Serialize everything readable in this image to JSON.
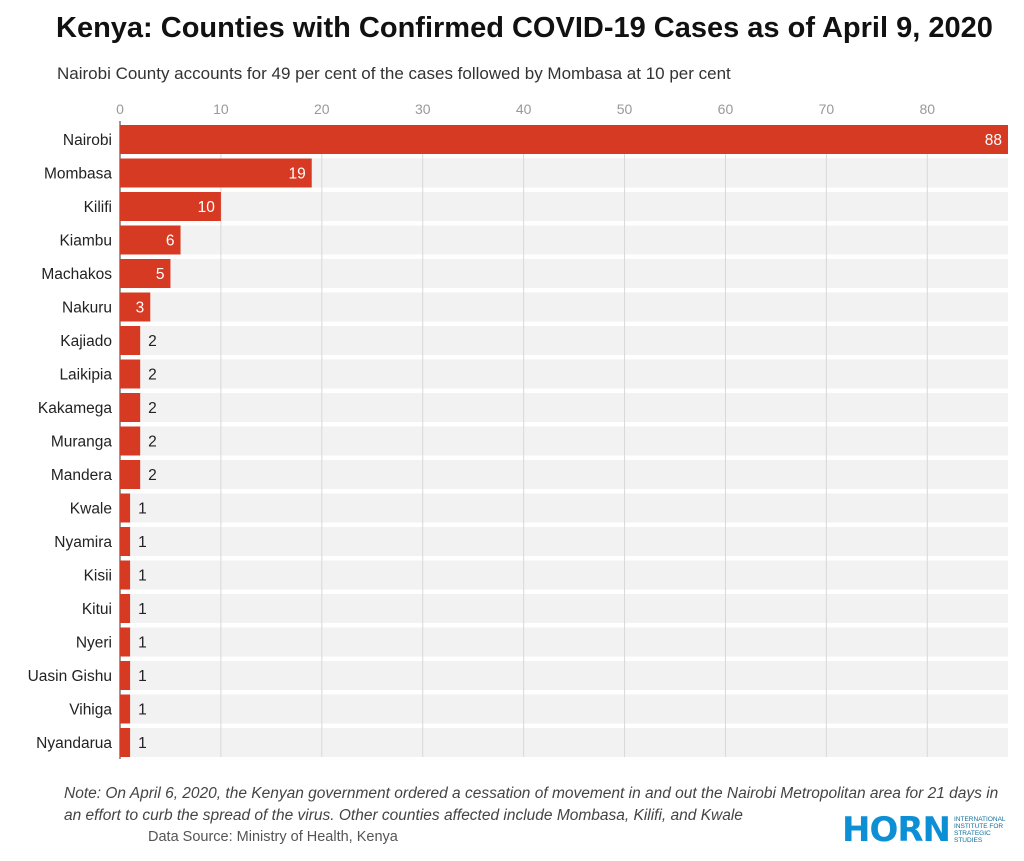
{
  "header": {
    "title": "Kenya: Counties with Confirmed COVID-19 Cases as of April 9, 2020",
    "subtitle": "Nairobi County accounts for 49 per cent of the cases followed by Mombasa at 10 per cent"
  },
  "footer": {
    "note": "Note: On April 6, 2020, the Kenyan government ordered a cessation of movement in and out the Nairobi Metropolitan area for 21 days in an effort to curb the spread of the virus. Other counties affected include Mombasa, Kilifi, and Kwale",
    "source": "Data Source: Ministry of Health, Kenya",
    "logo_word": "HORN",
    "logo_sub": "International Institute for Strategic Studies"
  },
  "colors": {
    "bar": "#d63a22",
    "row_bg": "#f2f2f2",
    "grid": "#d8d8d8"
  },
  "chart_data": {
    "type": "bar",
    "orientation": "horizontal",
    "title": "Kenya: Counties with Confirmed COVID-19 Cases as of April 9, 2020",
    "subtitle": "Nairobi County accounts for 49 per cent of the cases followed by Mombasa at 10 per cent",
    "categories": [
      "Nairobi",
      "Mombasa",
      "Kilifi",
      "Kiambu",
      "Machakos",
      "Nakuru",
      "Kajiado",
      "Laikipia",
      "Kakamega",
      "Muranga",
      "Mandera",
      "Kwale",
      "Nyamira",
      "Kisii",
      "Kitui",
      "Nyeri",
      "Uasin Gishu",
      "Vihiga",
      "Nyandarua"
    ],
    "values": [
      88,
      19,
      10,
      6,
      5,
      3,
      2,
      2,
      2,
      2,
      2,
      1,
      1,
      1,
      1,
      1,
      1,
      1,
      1
    ],
    "xticks": [
      0,
      10,
      20,
      30,
      40,
      50,
      60,
      70,
      80
    ],
    "xlim": [
      0,
      88
    ],
    "grid": true,
    "data_labels": true
  }
}
